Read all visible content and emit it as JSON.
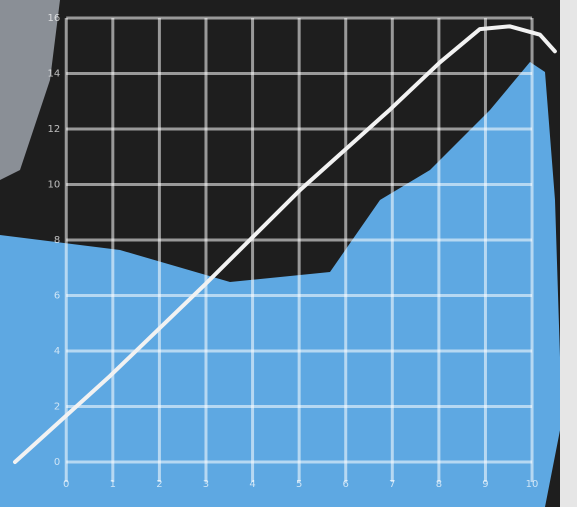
{
  "chart_data": {
    "type": "line",
    "x": [
      -1.1,
      0.94,
      2.98,
      5.02,
      6.95,
      8.02,
      8.88,
      9.52,
      10.17,
      10.49
    ],
    "series": [
      {
        "color": "#f2f2f2",
        "values": [
          0,
          3.1,
          6.4,
          9.8,
          12.7,
          14.4,
          15.6,
          15.7,
          15.4,
          14.8
        ]
      }
    ],
    "xlim": [
      -1.1,
      10.6
    ],
    "xticks": [
      0,
      1,
      2,
      3,
      4,
      5,
      6,
      7,
      8,
      9,
      10
    ],
    "ylim": [
      0,
      16
    ],
    "yticks": [
      0,
      2,
      4,
      6,
      8,
      10,
      12,
      14,
      16
    ],
    "grid": true
  }
}
